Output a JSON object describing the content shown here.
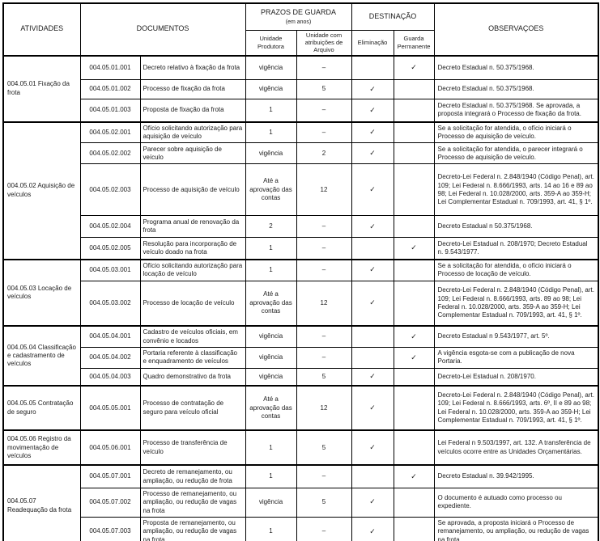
{
  "header": {
    "atividades": "ATIVIDADES",
    "documentos": "DOCUMENTOS",
    "prazos": "PRAZOS DE GUARDA",
    "prazos_sub": "(em anos)",
    "unidade_produtora": "Unidade Produtora",
    "unidade_arquivo": "Unidade com atribuições de Arquivo",
    "destinacao": "DESTINAÇÃO",
    "eliminacao": "Eliminação",
    "guarda_permanente": "Guarda Permanente",
    "observacoes": "OBSERVAÇOES"
  },
  "check_glyph": "✓",
  "groups": [
    {
      "atividade": "004.05.01 Fixação da frota",
      "rows": [
        {
          "codigo": "004.05.01.001",
          "documento": "Decreto relativo à fixação da frota",
          "produtora": "vigência",
          "arquivo": "–",
          "eliminacao": "",
          "permanente": "✓",
          "obs": "Decreto Estadual n. 50.375/1968."
        },
        {
          "codigo": "004.05.01.002",
          "documento": "Processo de fixação da frota",
          "produtora": "vigência",
          "arquivo": "5",
          "eliminacao": "✓",
          "permanente": "",
          "obs": "Decreto Estadual n. 50.375/1968."
        },
        {
          "codigo": "004.05.01.003",
          "documento": "Proposta de fixação da frota",
          "produtora": "1",
          "arquivo": "–",
          "eliminacao": "✓",
          "permanente": "",
          "obs": "Decreto Estadual n. 50.375/1968. Se aprovada, a proposta integrará o Processo de fixação da frota."
        }
      ]
    },
    {
      "atividade": "004.05.02 Aquisição de veículos",
      "rows": [
        {
          "codigo": "004.05.02.001",
          "documento": "Ofício solicitando autorização para aquisição de veículo",
          "produtora": "1",
          "arquivo": "–",
          "eliminacao": "✓",
          "permanente": "",
          "obs": "Se a solicitação for atendida, o ofício iniciará o Processo de aquisição de veículo."
        },
        {
          "codigo": "004.05.02.002",
          "documento": "Parecer sobre aquisição de veículo",
          "produtora": "vigência",
          "arquivo": "2",
          "eliminacao": "✓",
          "permanente": "",
          "obs": "Se a solicitação for atendida, o parecer integrará o Processo de aquisição de veículo."
        },
        {
          "codigo": "004.05.02.003",
          "documento": "Processo de aquisição de veículo",
          "produtora": "Até a aprovação das contas",
          "arquivo": "12",
          "eliminacao": "✓",
          "permanente": "",
          "obs": "Decreto-Lei Federal n. 2.848/1940 (Código Penal), art. 109; Lei Federal n. 8.666/1993, arts. 14 ao 16 e 89 ao 98; Lei Federal n. 10.028/2000, arts. 359-A ao 359-H; Lei Complementar Estadual n. 709/1993, art. 41, § 1º."
        },
        {
          "codigo": "004.05.02.004",
          "documento": "Programa anual de renovação da frota",
          "produtora": "2",
          "arquivo": "–",
          "eliminacao": "✓",
          "permanente": "",
          "obs": "Decreto Estadual n 50.375/1968."
        },
        {
          "codigo": "004.05.02.005",
          "documento": "Resolução para incorporação de veículo doado na frota",
          "produtora": "1",
          "arquivo": "–",
          "eliminacao": "",
          "permanente": "✓",
          "obs": "Decreto-Lei Estadual n. 208/1970; Decreto Estadual n. 9.543/1977."
        }
      ]
    },
    {
      "atividade": "004.05.03 Locação de veículos",
      "rows": [
        {
          "codigo": "004.05.03.001",
          "documento": "Ofício solicitando autorização para locação de veículo",
          "produtora": "1",
          "arquivo": "–",
          "eliminacao": "✓",
          "permanente": "",
          "obs": "Se a solicitação for atendida, o ofício iniciará o Processo de locação de veículo."
        },
        {
          "codigo": "004.05.03.002",
          "documento": "Processo de locação de veículo",
          "produtora": "Até a aprovação das contas",
          "arquivo": "12",
          "eliminacao": "✓",
          "permanente": "",
          "obs": "Decreto-Lei Federal n. 2.848/1940 (Código Penal), art. 109; Lei Federal n. 8.666/1993, arts. 89 ao 98; Lei Federal n. 10.028/2000, arts. 359-A ao 359-H; Lei Complementar Estadual n. 709/1993, art. 41, § 1º."
        }
      ]
    },
    {
      "atividade": "004.05.04 Classificação e cadastramento de veículos",
      "rows": [
        {
          "codigo": "004.05.04.001",
          "documento": "Cadastro de veículos oficiais, em convênio e locados",
          "produtora": "vigência",
          "arquivo": "–",
          "eliminacao": "",
          "permanente": "✓",
          "obs": "Decreto Estadual n 9.543/1977, art. 5º."
        },
        {
          "codigo": "004.05.04.002",
          "documento": "Portaria referente à classificação e enquadramento de veículos",
          "produtora": "vigência",
          "arquivo": "–",
          "eliminacao": "",
          "permanente": "✓",
          "obs": "A vigência esgota-se com a publicação de nova Portaria."
        },
        {
          "codigo": "004.05.04.003",
          "documento": "Quadro demonstrativo da frota",
          "produtora": "vigência",
          "arquivo": "5",
          "eliminacao": "✓",
          "permanente": "",
          "obs": "Decreto-Lei Estadual n. 208/1970."
        }
      ]
    },
    {
      "atividade": "004.05.05 Contratação de seguro",
      "rows": [
        {
          "codigo": "004.05.05.001",
          "documento": "Processo de contratação de seguro para veículo oficial",
          "produtora": "Até a aprovação das contas",
          "arquivo": "12",
          "eliminacao": "✓",
          "permanente": "",
          "obs": "Decreto-Lei Federal n. 2.848/1940 (Código Penal), art. 109; Lei Federal n. 8.666/1993, arts. 6º, II e 89 ao 98; Lei Federal n. 10.028/2000, arts. 359-A ao 359-H; Lei Complementar Estadual n. 709/1993, art. 41, § 1º."
        }
      ]
    },
    {
      "atividade": "004.05.06 Registro da movimentação de veículos",
      "rows": [
        {
          "codigo": "004.05.06.001",
          "documento": "Processo de transferência de veículo",
          "produtora": "1",
          "arquivo": "5",
          "eliminacao": "✓",
          "permanente": "",
          "obs": "Lei Federal n 9.503/1997, art. 132. A transferência de veículos ocorre entre as Unidades Orçamentárias."
        }
      ]
    },
    {
      "atividade": "004.05.07 Readequação da frota",
      "rows": [
        {
          "codigo": "004.05.07.001",
          "documento": "Decreto de remanejamento, ou ampliação, ou redução de frota",
          "produtora": "1",
          "arquivo": "–",
          "eliminacao": "",
          "permanente": "✓",
          "obs": "Decreto Estadual n. 39.942/1995."
        },
        {
          "codigo": "004.05.07.002",
          "documento": "Processo de remanejamento, ou ampliação, ou redução de vagas na frota",
          "produtora": "vigência",
          "arquivo": "5",
          "eliminacao": "✓",
          "permanente": "",
          "obs": "O documento é autuado como processo ou expediente."
        },
        {
          "codigo": "004.05.07.003",
          "documento": "Proposta de remanejamento, ou ampliação, ou redução de vagas na frota",
          "produtora": "1",
          "arquivo": "–",
          "eliminacao": "✓",
          "permanente": "",
          "obs": "Se aprovada, a proposta iniciará o Processo de remanejamento, ou ampliação, ou redução de vagas na frota."
        }
      ]
    }
  ]
}
